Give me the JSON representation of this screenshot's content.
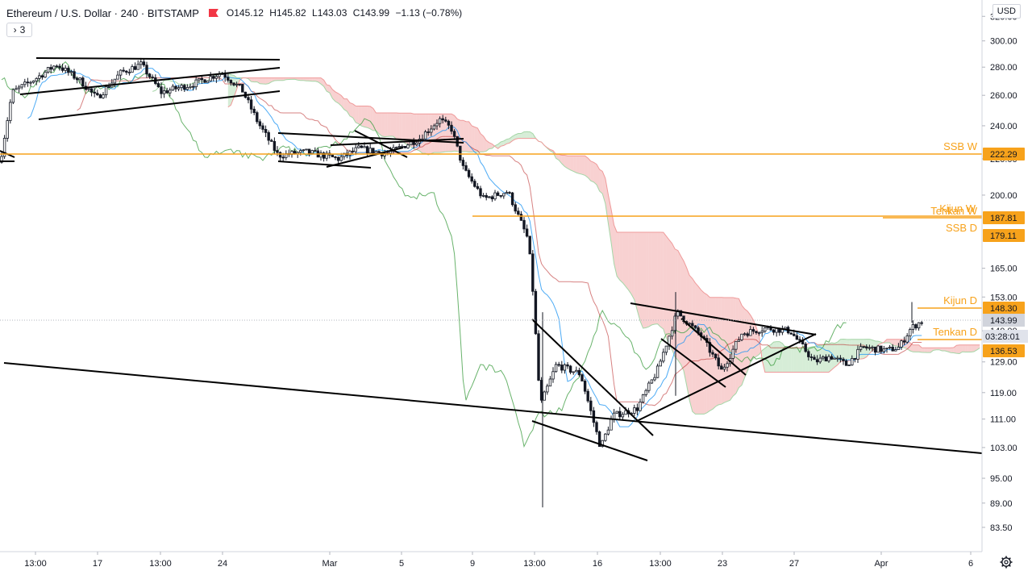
{
  "header": {
    "symbol": "Ethereum / U.S. Dollar · 240 · BITSTAMP",
    "open_label": "O",
    "open": "145.12",
    "high_label": "H",
    "high": "145.82",
    "low_label": "L",
    "low": "143.03",
    "close_label": "C",
    "close": "143.99",
    "change": "−1.13 (−0.78%)",
    "indicators_count": "3",
    "currency": "USD"
  },
  "colors": {
    "candle": "#131722",
    "level_line": "#f7a21b",
    "tenkan": "#2196f3",
    "kijun": "#b71c1c",
    "lagging": "#43a047",
    "kumo_bull": "#a5d6a7",
    "kumo_bear": "#ef9a9a"
  },
  "chart_data": {
    "type": "candlestick",
    "y_scale": "log",
    "ylim": [
      80,
      330
    ],
    "y_ticks": [
      "320.00",
      "300.00",
      "280.00",
      "260.00",
      "240.00",
      "220.00",
      "200.00",
      "165.00",
      "153.00",
      "140.00",
      "129.00",
      "119.00",
      "111.00",
      "103.00",
      "95.00",
      "89.00",
      "83.50"
    ],
    "x_ticks": [
      "13:00",
      "17",
      "13:00",
      "24",
      "Mar",
      "5",
      "9",
      "13:00",
      "16",
      "13:00",
      "23",
      "27",
      "Apr",
      "6"
    ],
    "levels": [
      {
        "name": "SSB W",
        "price": "222.29"
      },
      {
        "name": "Kijun W",
        "price": "187.81"
      },
      {
        "name": "Tenkan W",
        "price": "187.81"
      },
      {
        "name": "SSB D",
        "price": "179.11"
      },
      {
        "name": "Kijun D",
        "price": "148.30"
      },
      {
        "name": "Tenkan D",
        "price": "136.53"
      }
    ],
    "last_price": "143.99",
    "countdown": "03:28:01",
    "close_path": [
      [
        0,
        218
      ],
      [
        15,
        262
      ],
      [
        45,
        272
      ],
      [
        70,
        282
      ],
      [
        100,
        270
      ],
      [
        120,
        258
      ],
      [
        150,
        276
      ],
      [
        175,
        282
      ],
      [
        200,
        262
      ],
      [
        240,
        268
      ],
      [
        275,
        276
      ],
      [
        300,
        264
      ],
      [
        320,
        242
      ],
      [
        345,
        222
      ],
      [
        380,
        224
      ],
      [
        420,
        220
      ],
      [
        445,
        226
      ],
      [
        480,
        223
      ],
      [
        520,
        232
      ],
      [
        545,
        244
      ],
      [
        560,
        238
      ],
      [
        575,
        214
      ],
      [
        600,
        198
      ],
      [
        630,
        202
      ],
      [
        655,
        178
      ],
      [
        660,
        160
      ],
      [
        670,
        115
      ],
      [
        690,
        128
      ],
      [
        720,
        125
      ],
      [
        745,
        103
      ],
      [
        760,
        112
      ],
      [
        790,
        114
      ],
      [
        815,
        126
      ],
      [
        840,
        147
      ],
      [
        870,
        138
      ],
      [
        895,
        126
      ],
      [
        920,
        139
      ],
      [
        950,
        141
      ],
      [
        980,
        140
      ],
      [
        1010,
        129
      ],
      [
        1030,
        131
      ],
      [
        1050,
        128
      ],
      [
        1070,
        134
      ],
      [
        1100,
        133
      ],
      [
        1115,
        134
      ],
      [
        1130,
        141
      ],
      [
        1145,
        144
      ]
    ]
  }
}
